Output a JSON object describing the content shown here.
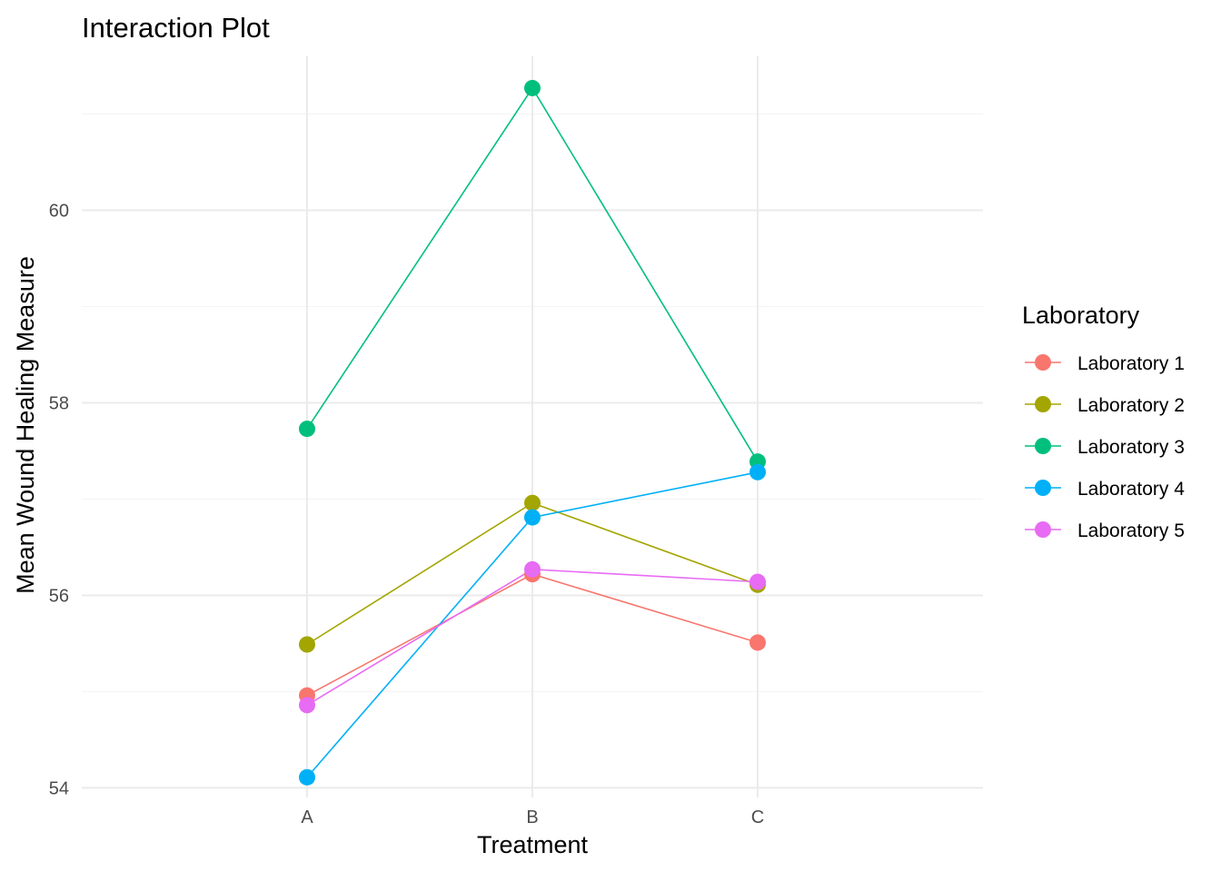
{
  "chart_data": {
    "type": "line",
    "title": "Interaction Plot",
    "xlabel": "Treatment",
    "ylabel": "Mean Wound Healing Measure",
    "categories": [
      "A",
      "B",
      "C"
    ],
    "ylim": [
      53.9,
      61.6
    ],
    "y_ticks": [
      54,
      56,
      58,
      60
    ],
    "y_minor_ticks": [
      55,
      57,
      59,
      61
    ],
    "grid": true,
    "legend": {
      "title": "Laboratory",
      "position": "right"
    },
    "series": [
      {
        "name": "Laboratory 1",
        "color": "#F8766D",
        "values": [
          54.96,
          56.22,
          55.51
        ]
      },
      {
        "name": "Laboratory 2",
        "color": "#A3A500",
        "values": [
          55.49,
          56.96,
          56.11
        ]
      },
      {
        "name": "Laboratory 3",
        "color": "#00BF7D",
        "values": [
          57.73,
          61.27,
          57.39
        ]
      },
      {
        "name": "Laboratory 4",
        "color": "#00B0F6",
        "values": [
          54.11,
          56.81,
          57.28
        ]
      },
      {
        "name": "Laboratory 5",
        "color": "#E76BF3",
        "values": [
          54.86,
          56.27,
          56.14
        ]
      }
    ]
  }
}
